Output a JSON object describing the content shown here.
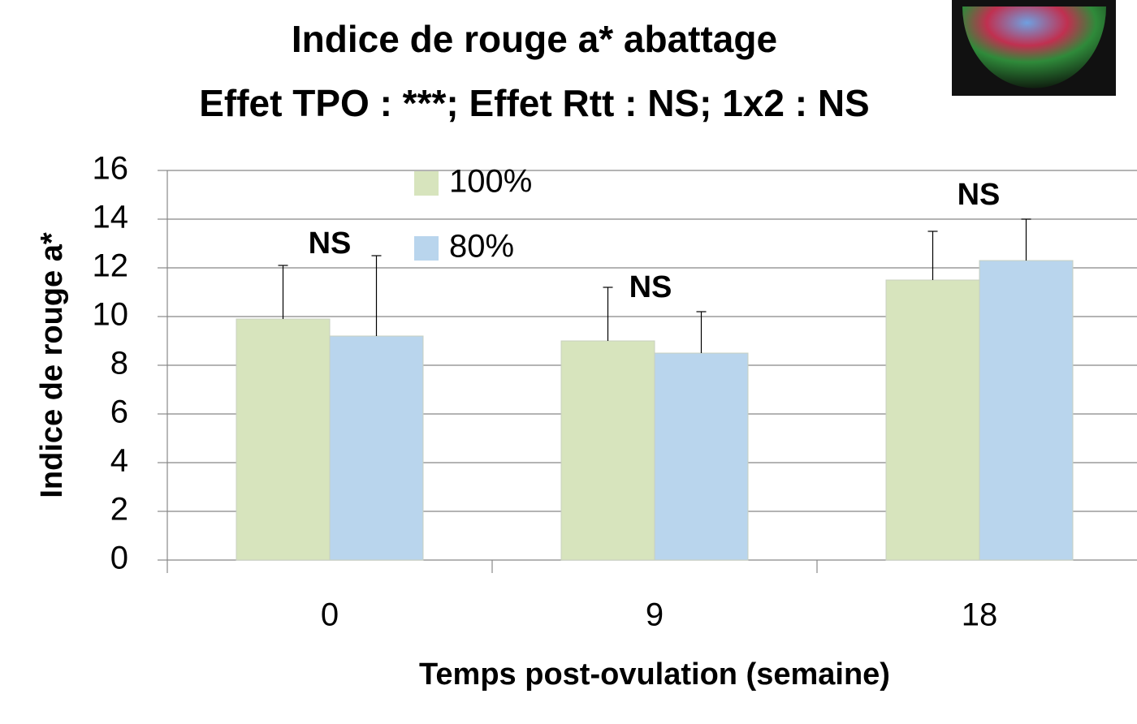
{
  "chart_data": {
    "type": "bar",
    "title": "Indice de rouge a* abattage",
    "subtitle": "Effet TPO : ***; Effet Rtt : NS;  1x2 : NS",
    "x_label": "Temps post-ovulation (semaine)",
    "y_label": "Indice de rouge a*",
    "categories": [
      "0",
      "9",
      "18"
    ],
    "series": [
      {
        "name": "100%",
        "color": "#d7e4bd",
        "values": [
          9.9,
          9.0,
          11.5
        ],
        "errors": [
          2.2,
          2.2,
          2.0
        ]
      },
      {
        "name": "80%",
        "color": "#b9d5ed",
        "values": [
          9.2,
          8.5,
          12.3
        ],
        "errors": [
          3.3,
          1.7,
          1.7
        ]
      }
    ],
    "annotations": [
      "NS",
      "NS",
      "NS"
    ],
    "ylim": [
      0,
      16
    ],
    "yticks": [
      0,
      2,
      4,
      6,
      8,
      10,
      12,
      14,
      16
    ],
    "grid": true
  }
}
